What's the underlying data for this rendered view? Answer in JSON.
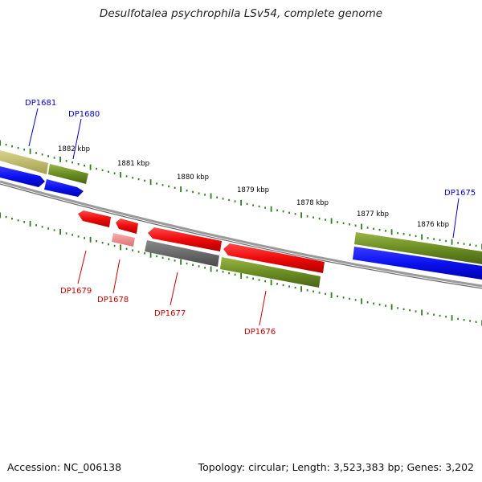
{
  "title": "Desulfotalea psychrophila LSv54, complete genome",
  "footer": {
    "accession": "Accession: NC_006138",
    "summary": "Topology: circular; Length: 3,523,383 bp; Genes: 3,202"
  },
  "ruler_labels": [
    "1882 kbp",
    "1881 kbp",
    "1880 kbp",
    "1879 kbp",
    "1878 kbp",
    "1877 kbp",
    "1876 kbp"
  ],
  "gene_labels": {
    "top": [
      "DP1681",
      "DP1680",
      "DP1675"
    ],
    "bottom": [
      "DP1679",
      "DP1678",
      "DP1677",
      "DP1676"
    ]
  },
  "colors": {
    "label_top": "#0000cc",
    "label_bottom": "#cc0000",
    "tick": "#2e7d1e",
    "forward_cds": "#0a12ee",
    "reverse_cds": "#ee0a0a",
    "olive_feature": "#6b8e23",
    "pseudo_feature": "#f08f8f",
    "gray_feature": "#666666",
    "backbone": "#808080"
  }
}
